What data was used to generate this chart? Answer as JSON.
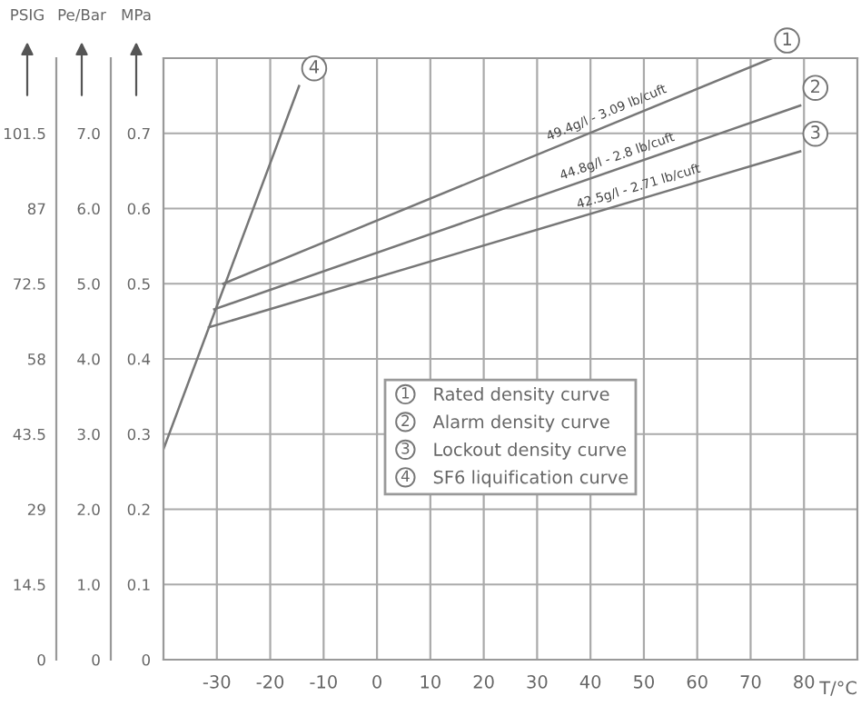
{
  "chart_data": {
    "type": "line",
    "xlabel": "T/°C",
    "ylabel": "MPa",
    "y2label": "Pe/Bar",
    "y3label": "PSIG",
    "xlim": [
      -40,
      90
    ],
    "xticks": [
      -30,
      -20,
      -10,
      0,
      10,
      20,
      30,
      40,
      50,
      60,
      70,
      80
    ],
    "ylim": [
      0,
      0.8
    ],
    "yticks": [
      0,
      0.1,
      0.2,
      0.3,
      0.4,
      0.5,
      0.6,
      0.7
    ],
    "y2lim": [
      0,
      8
    ],
    "y2ticks": [
      0,
      {
        "value": 1,
        "label": "1.0"
      },
      {
        "value": 2,
        "label": "2.0"
      },
      {
        "value": 3,
        "label": "3.0"
      },
      {
        "value": 4,
        "label": "4.0"
      },
      {
        "value": 5,
        "label": "5.0"
      },
      {
        "value": 6,
        "label": "6.0"
      },
      {
        "value": 7,
        "label": "7.0"
      }
    ],
    "y3lim": [
      0,
      116
    ],
    "y3ticks": [
      0,
      14.5,
      29,
      43.5,
      58,
      72.5,
      87,
      101.5
    ],
    "grid": true,
    "legend": "center",
    "marker": "none",
    "line_style": "solid",
    "series": [
      {
        "name": "Rated density curve",
        "color": "#777777",
        "x": [
          -28.8,
          74
        ],
        "values": [
          0.5,
          0.8
        ]
      },
      {
        "name": "Alarm density curve",
        "color": "#777777",
        "x": [
          -30.5,
          79.3
        ],
        "values": [
          0.466,
          0.737
        ]
      },
      {
        "name": "Lockout density curve",
        "color": "#777777",
        "x": [
          -31.5,
          79.3
        ],
        "values": [
          0.442,
          0.676
        ]
      },
      {
        "name": "SF6 liquification curve",
        "color": "#777777",
        "x": [
          -40,
          -14.6
        ],
        "values": [
          0.28,
          0.763
        ]
      }
    ],
    "annotations": [
      {
        "text": "1",
        "x": 74,
        "y": 0.8
      },
      {
        "text": "2",
        "x": 79.3,
        "y": 0.737
      },
      {
        "text": "3",
        "x": 79.3,
        "y": 0.676
      },
      {
        "text": "4",
        "x": -14.6,
        "y": 0.763
      },
      {
        "text": "49.4g/l - 3.09 lb/cuft",
        "x": 43,
        "y": 0.71
      },
      {
        "text": "44.8g/l - 2.8 lb/cuft",
        "x": 45,
        "y": 0.652
      },
      {
        "text": "42.5g/l - 2.71 lb/cuft",
        "x": 49,
        "y": 0.612
      }
    ]
  }
}
